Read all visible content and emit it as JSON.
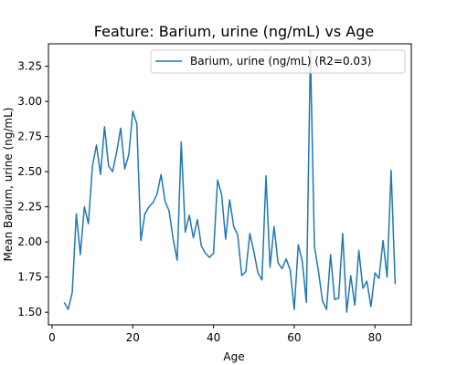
{
  "chart_data": {
    "type": "line",
    "title": "Feature: Barium, urine (ng/mL) vs Age",
    "xlabel": "Age",
    "ylabel": "Mean Barium, urine (ng/mL)",
    "xlim": [
      -0.9,
      89.0
    ],
    "ylim": [
      1.41,
      3.41
    ],
    "xticks": [
      0,
      20,
      40,
      60,
      80
    ],
    "yticks": [
      1.5,
      1.75,
      2.0,
      2.25,
      2.5,
      2.75,
      3.0,
      3.25
    ],
    "ytick_labels": [
      "1.50",
      "1.75",
      "2.00",
      "2.25",
      "2.50",
      "2.75",
      "3.00",
      "3.25"
    ],
    "grid": false,
    "legend_position": "top-right",
    "series": [
      {
        "name": "Barium, urine (ng/mL) (R2=0.03)",
        "color": "#1f77b4",
        "x": [
          3,
          4,
          5,
          6,
          7,
          8,
          9,
          10,
          11,
          12,
          13,
          14,
          15,
          16,
          17,
          18,
          19,
          20,
          21,
          22,
          23,
          24,
          25,
          26,
          27,
          28,
          29,
          30,
          31,
          32,
          33,
          34,
          35,
          36,
          37,
          38,
          39,
          40,
          41,
          42,
          43,
          44,
          45,
          46,
          47,
          48,
          49,
          50,
          51,
          52,
          53,
          54,
          55,
          56,
          57,
          58,
          59,
          60,
          61,
          62,
          63,
          64,
          65,
          66,
          67,
          68,
          69,
          70,
          71,
          72,
          73,
          74,
          75,
          76,
          77,
          78,
          79,
          80,
          81,
          82,
          83,
          84,
          85
        ],
        "y": [
          1.57,
          1.52,
          1.64,
          2.2,
          1.91,
          2.25,
          2.13,
          2.54,
          2.69,
          2.48,
          2.82,
          2.54,
          2.5,
          2.64,
          2.81,
          2.52,
          2.62,
          2.93,
          2.84,
          2.01,
          2.2,
          2.25,
          2.28,
          2.34,
          2.48,
          2.29,
          2.22,
          2.02,
          1.87,
          2.71,
          2.07,
          2.19,
          2.03,
          2.16,
          1.97,
          1.92,
          1.89,
          1.92,
          2.44,
          2.34,
          2.02,
          2.3,
          2.11,
          2.05,
          1.76,
          1.79,
          2.06,
          1.93,
          1.78,
          1.73,
          2.47,
          1.82,
          2.11,
          1.85,
          1.81,
          1.88,
          1.8,
          1.52,
          1.98,
          1.86,
          1.57,
          3.36,
          1.97,
          1.79,
          1.58,
          1.52,
          1.91,
          1.59,
          1.6,
          2.06,
          1.5,
          1.76,
          1.55,
          1.94,
          1.67,
          1.72,
          1.54,
          1.78,
          1.74,
          2.01,
          1.75,
          2.51,
          1.7
        ]
      }
    ]
  }
}
